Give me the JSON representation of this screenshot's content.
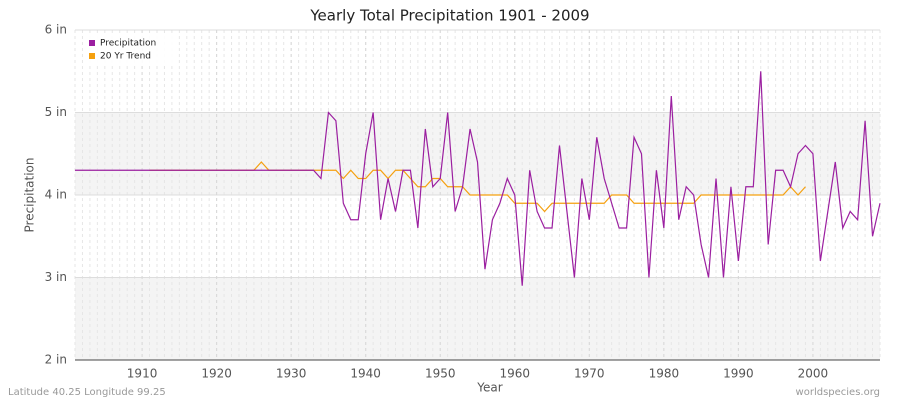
{
  "chart_data": {
    "type": "line",
    "title": "Yearly Total Precipitation 1901 - 2009",
    "xlabel": "Year",
    "ylabel": "Precipitation",
    "footer_left": "Latitude 40.25 Longitude 99.25",
    "footer_right": "worldspecies.org",
    "legend": "top-left",
    "grid": true,
    "x": [
      1901,
      1902,
      1903,
      1904,
      1905,
      1906,
      1907,
      1908,
      1909,
      1910,
      1911,
      1912,
      1913,
      1914,
      1915,
      1916,
      1917,
      1918,
      1919,
      1920,
      1921,
      1922,
      1923,
      1924,
      1925,
      1926,
      1927,
      1928,
      1929,
      1930,
      1931,
      1932,
      1933,
      1934,
      1935,
      1936,
      1937,
      1938,
      1939,
      1940,
      1941,
      1942,
      1943,
      1944,
      1945,
      1946,
      1947,
      1948,
      1949,
      1950,
      1951,
      1952,
      1953,
      1954,
      1955,
      1956,
      1957,
      1958,
      1959,
      1960,
      1961,
      1962,
      1963,
      1964,
      1965,
      1966,
      1967,
      1968,
      1969,
      1970,
      1971,
      1972,
      1973,
      1974,
      1975,
      1976,
      1977,
      1978,
      1979,
      1980,
      1981,
      1982,
      1983,
      1984,
      1985,
      1986,
      1987,
      1988,
      1989,
      1990,
      1991,
      1992,
      1993,
      1994,
      1995,
      1996,
      1997,
      1998,
      1999,
      2000,
      2001,
      2002,
      2003,
      2004,
      2005,
      2006,
      2007,
      2008,
      2009
    ],
    "xlim": [
      1901,
      2009
    ],
    "xticks": [
      1910,
      1920,
      1930,
      1940,
      1950,
      1960,
      1970,
      1980,
      1990,
      2000
    ],
    "ylim": [
      2,
      6
    ],
    "yticks": [
      {
        "value": 2,
        "label": "2 in"
      },
      {
        "value": 3,
        "label": "3 in"
      },
      {
        "value": 4,
        "label": "4 in"
      },
      {
        "value": 5,
        "label": "5 in"
      },
      {
        "value": 6,
        "label": "6 in"
      }
    ],
    "series": [
      {
        "name": "Precipitation",
        "color": "#9b1fa0",
        "values": [
          4.3,
          4.3,
          4.3,
          4.3,
          4.3,
          4.3,
          4.3,
          4.3,
          4.3,
          4.3,
          4.3,
          4.3,
          4.3,
          4.3,
          4.3,
          4.3,
          4.3,
          4.3,
          4.3,
          4.3,
          4.3,
          4.3,
          4.3,
          4.3,
          4.3,
          4.3,
          4.3,
          4.3,
          4.3,
          4.3,
          4.3,
          4.3,
          4.3,
          4.2,
          5.0,
          4.9,
          3.9,
          3.7,
          3.7,
          4.5,
          5.0,
          3.7,
          4.2,
          3.8,
          4.3,
          4.3,
          3.6,
          4.8,
          4.1,
          4.2,
          5.0,
          3.8,
          4.1,
          4.8,
          4.4,
          3.1,
          3.7,
          3.9,
          4.2,
          4.0,
          2.9,
          4.3,
          3.8,
          3.6,
          3.6,
          4.6,
          3.8,
          3.0,
          4.2,
          3.7,
          4.7,
          4.2,
          3.9,
          3.6,
          3.6,
          4.7,
          4.5,
          3.0,
          4.3,
          3.6,
          5.2,
          3.7,
          4.1,
          4.0,
          3.4,
          3.0,
          4.2,
          3.0,
          4.1,
          3.2,
          4.1,
          4.1,
          5.5,
          3.4,
          4.3,
          4.3,
          4.1,
          4.5,
          4.6,
          4.5,
          3.2,
          3.8,
          4.4,
          3.6,
          3.8,
          3.7,
          4.9,
          3.5,
          3.9
        ]
      },
      {
        "name": "20 Yr Trend",
        "color": "#f5a00f",
        "values": [
          null,
          null,
          null,
          null,
          null,
          null,
          null,
          null,
          null,
          null,
          4.3,
          4.3,
          4.3,
          4.3,
          4.3,
          4.3,
          4.3,
          4.3,
          4.3,
          4.3,
          4.3,
          4.3,
          4.3,
          4.3,
          4.3,
          4.4,
          4.3,
          4.3,
          4.3,
          4.3,
          4.3,
          4.3,
          4.3,
          4.3,
          4.3,
          4.3,
          4.2,
          4.3,
          4.2,
          4.2,
          4.3,
          4.3,
          4.2,
          4.3,
          4.3,
          4.2,
          4.1,
          4.1,
          4.2,
          4.2,
          4.1,
          4.1,
          4.1,
          4.0,
          4.0,
          4.0,
          4.0,
          4.0,
          4.0,
          3.9,
          3.9,
          3.9,
          3.9,
          3.8,
          3.9,
          3.9,
          3.9,
          3.9,
          3.9,
          3.9,
          3.9,
          3.9,
          4.0,
          4.0,
          4.0,
          3.9,
          3.9,
          3.9,
          3.9,
          3.9,
          3.9,
          3.9,
          3.9,
          3.9,
          4.0,
          4.0,
          4.0,
          4.0,
          4.0,
          4.0,
          4.0,
          4.0,
          4.0,
          4.0,
          4.0,
          4.0,
          4.1,
          4.0,
          4.1,
          null,
          null,
          null,
          null,
          null,
          null,
          null,
          null,
          null,
          null
        ]
      }
    ]
  }
}
